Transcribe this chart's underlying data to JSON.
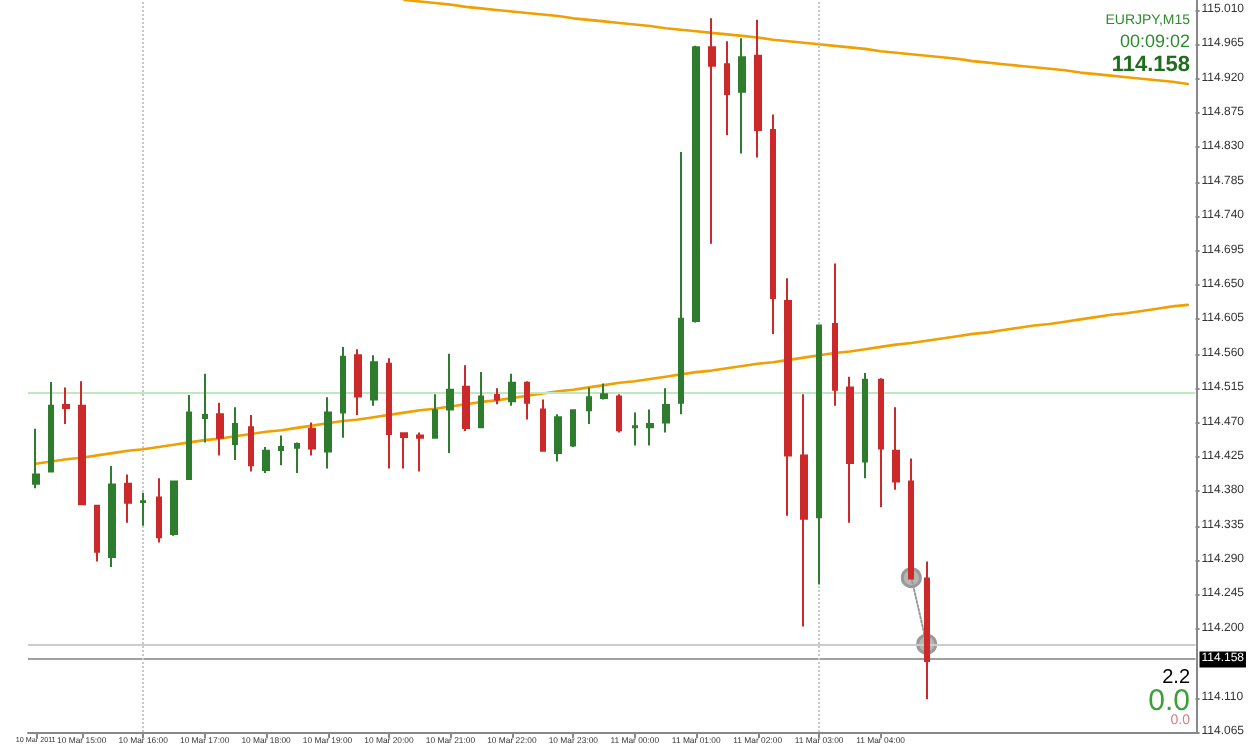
{
  "chart_data": {
    "type": "candlestick",
    "categories": [
      "10 Mar 2011",
      null,
      null,
      "10 Mar 15:00",
      null,
      null,
      null,
      "10 Mar 16:00",
      null,
      null,
      null,
      "10 Mar 17:00",
      null,
      null,
      null,
      "10 Mar 18:00",
      null,
      null,
      null,
      "10 Mar 19:00",
      null,
      null,
      null,
      "10 Mar 20:00",
      null,
      null,
      null,
      "10 Mar 21:00",
      null,
      null,
      null,
      "10 Mar 22:00",
      null,
      null,
      null,
      "10 Mar 23:00",
      null,
      null,
      null,
      "11 Mar 00:00",
      null,
      null,
      null,
      "11 Mar 01:00",
      null,
      null,
      null,
      "11 Mar 02:00",
      null,
      null,
      null,
      "11 Mar 03:00",
      null,
      null,
      null,
      "11 Mar 04:00",
      null,
      null,
      null,
      null,
      null,
      null,
      null,
      null,
      null,
      null,
      null,
      null,
      null,
      null,
      null,
      null,
      null,
      null,
      null,
      null
    ],
    "ohlc": [
      [
        114.39,
        114.462,
        114.384,
        114.402
      ],
      [
        114.406,
        114.523,
        114.406,
        114.492
      ],
      [
        114.493,
        114.516,
        114.468,
        114.489
      ],
      [
        114.492,
        114.524,
        114.363,
        114.363
      ],
      [
        114.361,
        114.361,
        114.288,
        114.301
      ],
      [
        114.294,
        114.413,
        114.281,
        114.389
      ],
      [
        114.39,
        114.402,
        114.339,
        114.365
      ],
      [
        114.366,
        114.378,
        114.335,
        114.367
      ],
      [
        114.372,
        114.397,
        114.313,
        114.32
      ],
      [
        114.324,
        114.393,
        114.322,
        114.393
      ],
      [
        114.396,
        114.506,
        114.396,
        114.483
      ],
      [
        114.476,
        114.534,
        114.444,
        114.48
      ],
      [
        114.481,
        114.496,
        114.427,
        114.45
      ],
      [
        114.442,
        114.49,
        114.421,
        114.468
      ],
      [
        114.464,
        114.48,
        114.406,
        114.414
      ],
      [
        114.408,
        114.438,
        114.404,
        114.433
      ],
      [
        114.434,
        114.453,
        114.414,
        114.438
      ],
      [
        114.437,
        114.444,
        114.404,
        114.442
      ],
      [
        114.462,
        114.47,
        114.427,
        114.436
      ],
      [
        114.432,
        114.503,
        114.41,
        114.483
      ],
      [
        114.483,
        114.569,
        114.45,
        114.556
      ],
      [
        114.558,
        114.566,
        114.48,
        114.504
      ],
      [
        114.5,
        114.558,
        114.492,
        114.549
      ],
      [
        114.547,
        114.554,
        114.41,
        114.455
      ],
      [
        114.456,
        114.456,
        114.41,
        114.451
      ],
      [
        114.453,
        114.457,
        114.406,
        114.45
      ],
      [
        114.45,
        114.507,
        114.449,
        114.486
      ],
      [
        114.487,
        114.56,
        114.43,
        114.513
      ],
      [
        114.517,
        114.545,
        114.459,
        114.463
      ],
      [
        114.464,
        114.536,
        114.463,
        114.504
      ],
      [
        114.506,
        114.515,
        114.494,
        114.5
      ],
      [
        114.498,
        114.534,
        114.492,
        114.522
      ],
      [
        114.522,
        114.524,
        114.474,
        114.496
      ],
      [
        114.487,
        114.5,
        114.432,
        114.433
      ],
      [
        114.43,
        114.481,
        114.419,
        114.477
      ],
      [
        114.44,
        114.487,
        114.438,
        114.486
      ],
      [
        114.486,
        114.516,
        114.468,
        114.503
      ],
      [
        114.502,
        114.521,
        114.5,
        114.507
      ],
      [
        114.504,
        114.507,
        114.457,
        114.46
      ],
      [
        114.464,
        114.483,
        114.44,
        114.465
      ],
      [
        114.464,
        114.487,
        114.44,
        114.468
      ],
      [
        114.47,
        114.515,
        114.457,
        114.493
      ],
      [
        114.496,
        114.824,
        114.481,
        114.606
      ],
      [
        114.603,
        114.963,
        114.601,
        114.961
      ],
      [
        114.961,
        114.999,
        114.704,
        114.937
      ],
      [
        114.939,
        114.969,
        114.846,
        114.9
      ],
      [
        114.903,
        114.973,
        114.822,
        114.948
      ],
      [
        114.95,
        114.997,
        114.817,
        114.853
      ],
      [
        114.853,
        114.873,
        114.586,
        114.633
      ],
      [
        114.629,
        114.659,
        114.348,
        114.427
      ],
      [
        114.427,
        114.507,
        114.203,
        114.344
      ],
      [
        114.346,
        114.597,
        114.258,
        114.597
      ],
      [
        114.599,
        114.678,
        114.492,
        114.513
      ],
      [
        114.516,
        114.53,
        114.339,
        114.417
      ],
      [
        114.419,
        114.535,
        114.397,
        114.526
      ],
      [
        114.526,
        114.528,
        114.359,
        114.436
      ],
      [
        114.433,
        114.49,
        114.382,
        114.393
      ],
      [
        114.393,
        114.423,
        114.266,
        114.266
      ],
      [
        114.266,
        114.288,
        114.108,
        114.158
      ],
      null,
      null,
      null,
      null,
      null,
      null,
      null,
      null,
      null,
      null,
      null,
      null,
      null,
      null,
      null,
      null,
      null
    ],
    "colors": [
      "#2e7d2e",
      "#2e7d2e",
      "#cc2a2a",
      "#cc2a2a",
      "#cc2a2a",
      "#2e7d2e",
      "#cc2a2a",
      "#2e7d2e",
      "#cc2a2a",
      "#2e7d2e",
      "#2e7d2e",
      "#2e7d2e",
      "#cc2a2a",
      "#2e7d2e",
      "#cc2a2a",
      "#2e7d2e",
      "#2e7d2e",
      "#2e7d2e",
      "#cc2a2a",
      "#2e7d2e",
      "#2e7d2e",
      "#cc2a2a",
      "#2e7d2e",
      "#cc2a2a",
      "#cc2a2a",
      "#cc2a2a",
      "#2e7d2e",
      "#2e7d2e",
      "#cc2a2a",
      "#2e7d2e",
      "#cc2a2a",
      "#2e7d2e",
      "#cc2a2a",
      "#cc2a2a",
      "#2e7d2e",
      "#2e7d2e",
      "#2e7d2e",
      "#2e7d2e",
      "#cc2a2a",
      "#2e7d2e",
      "#2e7d2e",
      "#2e7d2e",
      "#2e7d2e",
      "#2e7d2e",
      "#cc2a2a",
      "#cc2a2a",
      "#2e7d2e",
      "#cc2a2a",
      "#cc2a2a",
      "#cc2a2a",
      "#cc2a2a",
      "#2e7d2e",
      "#cc2a2a",
      "#cc2a2a",
      "#2e7d2e",
      "#cc2a2a",
      "#cc2a2a",
      "#cc2a2a",
      "#cc2a2a",
      null,
      null,
      null,
      null,
      null,
      null,
      null,
      null,
      null,
      null,
      null,
      null,
      null,
      null,
      null,
      null,
      null
    ],
    "series": [
      {
        "type": "line",
        "color": "#f0a000",
        "marker": "none",
        "line_style": "solid",
        "values": [
          null,
          null,
          null,
          null,
          null,
          null,
          null,
          null,
          null,
          null,
          null,
          null,
          null,
          null,
          null,
          null,
          null,
          null,
          null,
          null,
          null,
          null,
          null,
          null,
          115.023,
          115.021,
          115.019,
          115.017,
          115.014,
          115.012,
          115.01,
          115.008,
          115.006,
          115.004,
          115.002,
          114.999,
          114.997,
          114.995,
          114.993,
          114.991,
          114.989,
          114.986,
          114.984,
          114.982,
          114.98,
          114.978,
          114.976,
          114.974,
          114.971,
          114.969,
          114.967,
          114.965,
          114.963,
          114.961,
          114.959,
          114.956,
          114.954,
          114.952,
          114.95,
          114.948,
          114.946,
          114.943,
          114.941,
          114.939,
          114.937,
          114.935,
          114.933,
          114.931,
          114.928,
          114.926,
          114.924,
          114.922,
          114.92,
          114.918,
          114.916,
          114.913
        ]
      },
      {
        "type": "line",
        "color": "#f0a000",
        "marker": "none",
        "line_style": "solid",
        "values": [
          114.416,
          114.419,
          114.422,
          114.424,
          114.427,
          114.43,
          114.433,
          114.435,
          114.438,
          114.441,
          114.444,
          114.447,
          114.449,
          114.452,
          114.455,
          114.458,
          114.46,
          114.463,
          114.466,
          114.469,
          114.472,
          114.474,
          114.477,
          114.48,
          114.483,
          114.486,
          114.488,
          114.491,
          114.494,
          114.497,
          114.499,
          114.502,
          114.505,
          114.508,
          114.511,
          114.513,
          114.516,
          114.519,
          114.522,
          114.524,
          114.527,
          114.53,
          114.533,
          114.536,
          114.538,
          114.541,
          114.544,
          114.547,
          114.549,
          114.552,
          114.555,
          114.558,
          114.561,
          114.563,
          114.566,
          114.569,
          114.572,
          114.574,
          114.577,
          114.58,
          114.583,
          114.586,
          114.588,
          114.591,
          114.594,
          114.597,
          114.599,
          114.602,
          114.605,
          114.608,
          114.611,
          114.613,
          114.616,
          114.619,
          114.622,
          114.624
        ]
      },
      {
        "type": "line",
        "color": "#999999",
        "marker": "circle",
        "line_style": "dotted",
        "values": [
          null,
          null,
          null,
          null,
          null,
          null,
          null,
          null,
          null,
          null,
          null,
          null,
          null,
          null,
          null,
          null,
          null,
          null,
          null,
          null,
          null,
          null,
          null,
          null,
          null,
          null,
          null,
          null,
          null,
          null,
          null,
          null,
          null,
          null,
          null,
          null,
          null,
          null,
          null,
          null,
          null,
          null,
          null,
          null,
          null,
          null,
          null,
          null,
          null,
          null,
          null,
          null,
          null,
          null,
          null,
          null,
          null,
          114.267,
          114.18,
          null,
          null,
          null,
          null,
          null,
          null,
          null,
          null,
          null,
          null,
          null,
          null,
          null,
          null,
          null,
          null,
          null
        ]
      }
    ],
    "ref_lines": [
      {
        "axis": "y",
        "value": 114.509,
        "color": "#bfe8bf",
        "line_style": "solid"
      },
      {
        "axis": "y",
        "value": 114.18,
        "color": "#cccccc",
        "line_style": "solid"
      },
      {
        "axis": "y",
        "value": 114.158,
        "label": "114.158",
        "color": "#a0a0a0",
        "line_style": "solid"
      },
      {
        "axis": "x",
        "value": "10 Mar 16:00",
        "color": "#c8c8c8",
        "line_style": "dotted"
      },
      {
        "axis": "x",
        "value": "11 Mar 03:00",
        "color": "#c8c8c8",
        "line_style": "dotted"
      }
    ],
    "annotations": [
      "EURJPY,M15",
      "00:09:02",
      "114.158",
      "2.2",
      "0.0",
      "0.0"
    ],
    "ylim": [
      114.065,
      115.023
    ],
    "yticks": [
      {
        "value": 115.01,
        "label": "115.010"
      },
      {
        "value": 114.965,
        "label": "114.965"
      },
      {
        "value": 114.92,
        "label": "114.920"
      },
      {
        "value": 114.875,
        "label": "114.875"
      },
      {
        "value": 114.83,
        "label": "114.830"
      },
      {
        "value": 114.785,
        "label": "114.785"
      },
      {
        "value": 114.74,
        "label": "114.740"
      },
      {
        "value": 114.695,
        "label": "114.695"
      },
      {
        "value": 114.65,
        "label": "114.650"
      },
      {
        "value": 114.605,
        "label": "114.605"
      },
      {
        "value": 114.56,
        "label": "114.560"
      },
      {
        "value": 114.515,
        "label": "114.515"
      },
      {
        "value": 114.47,
        "label": "114.470"
      },
      {
        "value": 114.425,
        "label": "114.425"
      },
      {
        "value": 114.38,
        "label": "114.380"
      },
      {
        "value": 114.335,
        "label": "114.335"
      },
      {
        "value": 114.29,
        "label": "114.290"
      },
      {
        "value": 114.245,
        "label": "114.245"
      },
      {
        "value": 114.2,
        "label": "114.200"
      },
      {
        "value": 114.11,
        "label": "114.110"
      },
      {
        "value": 114.065,
        "label": "114.065"
      }
    ],
    "grid": false
  }
}
